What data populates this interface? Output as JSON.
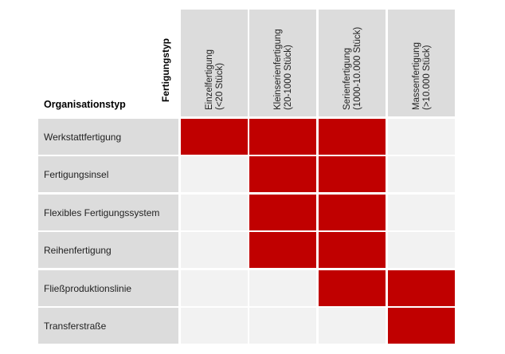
{
  "corner": {
    "row_axis_label": "Organisationstyp",
    "col_axis_label": "Fertigungstyp"
  },
  "columns": [
    {
      "line1": "Einzelfertigung",
      "line2": "(<20 Stück)"
    },
    {
      "line1": "Kleinserienfertigung",
      "line2": "(20-1000 Stück)"
    },
    {
      "line1": "Serienfertigung",
      "line2": "(1000-10.000 Stück)"
    },
    {
      "line1": "Massenfertigung",
      "line2": "(>10.000 Stück)"
    }
  ],
  "rows": [
    {
      "label": "Werkstattfertigung",
      "cells": [
        true,
        true,
        true,
        false
      ]
    },
    {
      "label": "Fertigungsinsel",
      "cells": [
        false,
        true,
        true,
        false
      ]
    },
    {
      "label": "Flexibles Fertigungssystem",
      "cells": [
        false,
        true,
        true,
        false
      ]
    },
    {
      "label": "Reihenfertigung",
      "cells": [
        false,
        true,
        true,
        false
      ]
    },
    {
      "label": "Fließproduktionslinie",
      "cells": [
        false,
        false,
        true,
        true
      ]
    },
    {
      "label": "Transferstraße",
      "cells": [
        false,
        false,
        false,
        true
      ]
    }
  ],
  "colors": {
    "active": "#c00000",
    "inactive": "#f2f2f2",
    "header": "#dcdcdc"
  }
}
